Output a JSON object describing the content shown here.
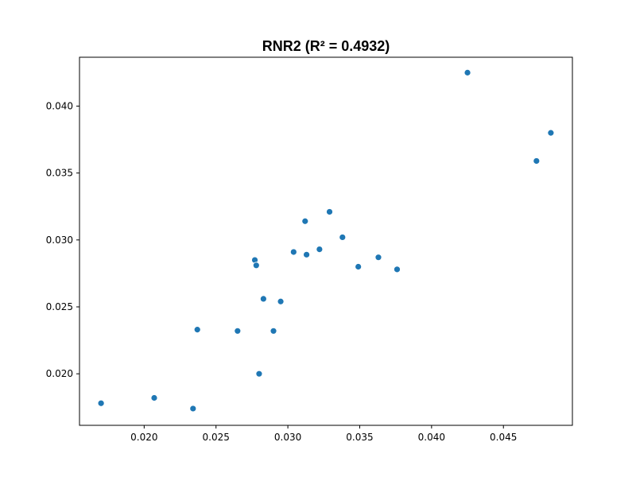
{
  "chart_data": {
    "type": "scatter",
    "title": "RNR2 (R² = 0.4932)",
    "xlabel": "",
    "ylabel": "",
    "xlim": [
      0.0155,
      0.0498
    ],
    "ylim": [
      0.01615,
      0.04365
    ],
    "xticks": [
      0.02,
      0.025,
      0.03,
      0.035,
      0.04,
      0.045
    ],
    "xtick_labels": [
      "0.020",
      "0.025",
      "0.030",
      "0.035",
      "0.040",
      "0.045"
    ],
    "yticks": [
      0.02,
      0.025,
      0.03,
      0.035,
      0.04
    ],
    "ytick_labels": [
      "0.020",
      "0.025",
      "0.030",
      "0.035",
      "0.040"
    ],
    "grid": false,
    "point_color": "#1f77b4",
    "points": [
      {
        "x": 0.017,
        "y": 0.0178
      },
      {
        "x": 0.0207,
        "y": 0.0182
      },
      {
        "x": 0.0234,
        "y": 0.0174
      },
      {
        "x": 0.0237,
        "y": 0.0233
      },
      {
        "x": 0.0265,
        "y": 0.0232
      },
      {
        "x": 0.0277,
        "y": 0.0285
      },
      {
        "x": 0.0278,
        "y": 0.0281
      },
      {
        "x": 0.028,
        "y": 0.02
      },
      {
        "x": 0.0283,
        "y": 0.0256
      },
      {
        "x": 0.029,
        "y": 0.0232
      },
      {
        "x": 0.0295,
        "y": 0.0254
      },
      {
        "x": 0.0304,
        "y": 0.0291
      },
      {
        "x": 0.0312,
        "y": 0.0314
      },
      {
        "x": 0.0313,
        "y": 0.0289
      },
      {
        "x": 0.0322,
        "y": 0.0293
      },
      {
        "x": 0.0329,
        "y": 0.0321
      },
      {
        "x": 0.0338,
        "y": 0.0302
      },
      {
        "x": 0.0349,
        "y": 0.028
      },
      {
        "x": 0.0363,
        "y": 0.0287
      },
      {
        "x": 0.0376,
        "y": 0.0278
      },
      {
        "x": 0.0425,
        "y": 0.0425
      },
      {
        "x": 0.0473,
        "y": 0.0359
      },
      {
        "x": 0.0483,
        "y": 0.038
      }
    ]
  }
}
